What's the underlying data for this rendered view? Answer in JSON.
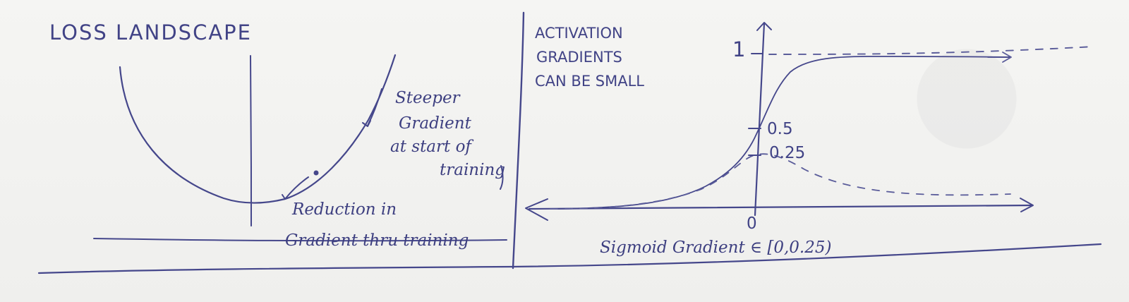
{
  "left_panel": {
    "title": "LOSS LANDSCAPE",
    "steep_note_lines": [
      "Steeper",
      "Gradient",
      "at start of",
      "training"
    ],
    "reduction_note_lines": [
      "Reduction in",
      "Gradient thru training"
    ]
  },
  "right_panel": {
    "title_lines": [
      "ACTIVATION",
      "GRADIENTS",
      "CAN BE SMALL"
    ],
    "tick_1": "1",
    "tick_05": "0.5",
    "tick_025": "0.25",
    "origin_label": "0",
    "caption": "Sigmoid Gradient ∈ [0,0.25)"
  },
  "colors": {
    "ink": "#45478b",
    "paper": "#f3f3f1"
  }
}
